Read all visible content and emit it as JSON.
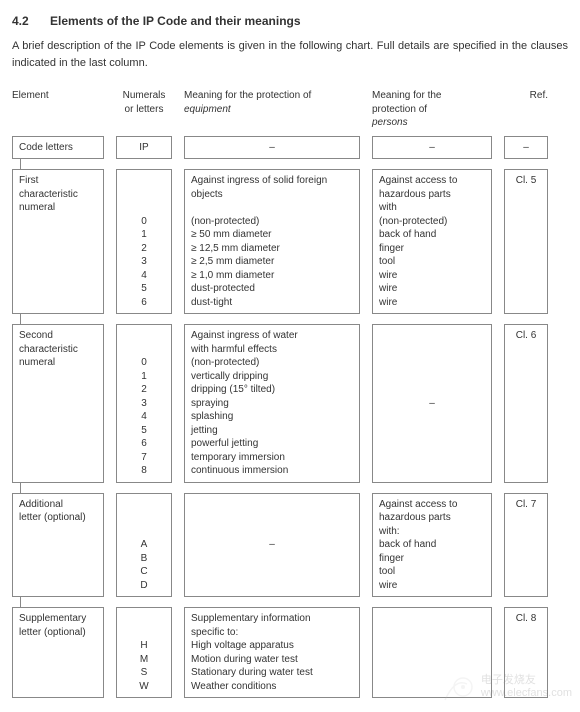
{
  "heading_number": "4.2",
  "heading_title": "Elements of the IP Code and their meanings",
  "intro": "A brief description of the IP Code elements is given in the following chart. Full details are specified in the clauses indicated in the last column.",
  "columns": {
    "element": "Element",
    "numerals": "Numerals\nor letters",
    "equip_pre": "Meaning for the protection of",
    "equip_it": "equipment",
    "persons_pre": "Meaning for the\nprotection of",
    "persons_it": "persons",
    "ref": "Ref."
  },
  "rows": [
    {
      "element": "Code letters",
      "numerals": "IP",
      "equipment": "–",
      "equipment_centered": true,
      "persons": "–",
      "persons_centered": true,
      "ref": "–"
    },
    {
      "element": "First\ncharacteristic\nnumeral",
      "numerals": "0\n1\n2\n3\n4\n5\n6",
      "equipment": "Against ingress of solid foreign\nobjects\n\n(non-protected)\n≥ 50 mm diameter\n≥ 12,5 mm diameter\n≥ 2,5 mm diameter\n≥ 1,0 mm diameter\ndust-protected\ndust-tight",
      "persons": "Against access to\nhazardous parts\nwith\n(non-protected)\nback of hand\nfinger\ntool\nwire\nwire\nwire",
      "ref": "Cl. 5"
    },
    {
      "element": "Second\ncharacteristic\nnumeral",
      "numerals": "0\n1\n2\n3\n4\n5\n6\n7\n8",
      "equipment": "Against ingress of water\nwith harmful effects\n(non-protected)\nvertically dripping\ndripping (15° tilted)\nspraying\nsplashing\njetting\npowerful jetting\ntemporary immersion\ncontinuous immersion",
      "persons": "–",
      "persons_centered": true,
      "ref": "Cl. 6"
    },
    {
      "element": "Additional\nletter (optional)",
      "numerals": "A\nB\nC\nD",
      "equipment": "–",
      "equipment_centered": true,
      "persons": "Against access to\nhazardous parts\nwith:\nback of hand\nfinger\ntool\nwire",
      "ref": "Cl. 7"
    },
    {
      "element": "Supplementary\nletter (optional)",
      "numerals": "H\nM\nS\nW",
      "equipment": "Supplementary information\nspecific to:\nHigh voltage apparatus\nMotion during water test\nStationary during water test\nWeather conditions",
      "persons": "",
      "ref": "Cl. 8"
    }
  ],
  "watermark": "电子发烧友\nwww.elecfans.com"
}
